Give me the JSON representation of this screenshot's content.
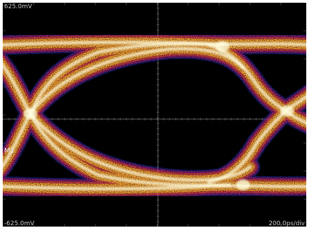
{
  "display": {
    "background": "#000000",
    "grid_color": "#8a8a8a",
    "trace_colors": {
      "outer_edge": "#2233cc",
      "low_density": "#d81e6a",
      "mid_density": "#ff5a12",
      "high_density": "#ffe21a",
      "peak_density": "#ffffe0"
    }
  },
  "readouts": {
    "vertical_scale_top": "625.0mV",
    "vertical_scale_bottom": "-625.0mV",
    "time_per_div": "200.0ps/div"
  },
  "marker": {
    "label": "M1"
  }
}
